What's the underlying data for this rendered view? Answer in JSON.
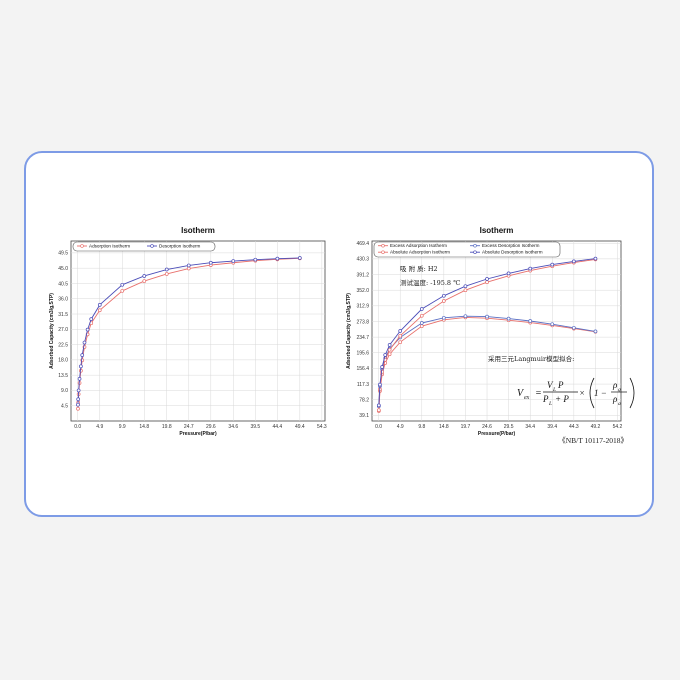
{
  "colors": {
    "card_border": "#7d9be6",
    "adsorption": "#e8706c",
    "desorption": "#4b4db8",
    "excess_desorption": "#5a6fc4"
  },
  "footer_note": "《NB/T 10117-2018》",
  "chart_data": [
    {
      "type": "line",
      "title": "Isotherm",
      "xlabel": "Pressure(P/bar)",
      "ylabel": "Adsorbed Capacity (cm3/g,STP)",
      "xticks": [
        "0.0",
        "4.9",
        "9.9",
        "14.8",
        "19.8",
        "24.7",
        "29.6",
        "34.6",
        "39.5",
        "44.4",
        "49.4",
        "54.3"
      ],
      "yticks": [
        "4.5",
        "9.0",
        "13.5",
        "18.0",
        "22.5",
        "27.0",
        "31.5",
        "36.0",
        "40.5",
        "45.0",
        "49.5"
      ],
      "xlim": [
        -1.5,
        55
      ],
      "ylim": [
        0,
        53
      ],
      "grid": true,
      "legend_position": "top-left",
      "series": [
        {
          "name": "Adsorption Isotherm",
          "color": "#e8706c",
          "x": [
            0.05,
            0.1,
            0.2,
            0.4,
            0.7,
            1.0,
            1.5,
            2.2,
            3.0,
            4.9,
            9.9,
            14.8,
            19.8,
            24.7,
            29.6,
            34.6,
            39.5,
            44.4,
            49.4
          ],
          "y": [
            3.6,
            5.4,
            7.9,
            11.2,
            14.8,
            17.9,
            21.8,
            25.5,
            28.8,
            32.6,
            38.3,
            41.2,
            43.3,
            44.9,
            45.9,
            46.6,
            47.2,
            47.6,
            47.9
          ]
        },
        {
          "name": "Desorption Isotherm",
          "color": "#4b4db8",
          "x": [
            49.4,
            44.4,
            39.5,
            34.6,
            29.6,
            24.7,
            19.8,
            14.8,
            9.9,
            4.9,
            3.0,
            2.2,
            1.5,
            1.0,
            0.7,
            0.4,
            0.2,
            0.1,
            0.05
          ],
          "y": [
            48.0,
            47.8,
            47.5,
            47.1,
            46.6,
            45.8,
            44.6,
            42.7,
            40.1,
            34.2,
            30.0,
            26.9,
            23.1,
            19.4,
            16.1,
            12.4,
            9.0,
            6.4,
            4.8
          ]
        }
      ]
    },
    {
      "type": "line",
      "title": "Isotherm",
      "xlabel": "Pressure(P/bar)",
      "ylabel": "Adsorbed Capacity (cm3/g,STP)",
      "xticks": [
        "0.0",
        "4.9",
        "9.8",
        "14.8",
        "19.7",
        "24.6",
        "29.5",
        "34.4",
        "39.4",
        "44.3",
        "49.2",
        "54.2"
      ],
      "yticks": [
        "39.1",
        "78.2",
        "117.3",
        "156.4",
        "195.6",
        "234.7",
        "273.8",
        "312.9",
        "352.0",
        "391.2",
        "430.3",
        "469.4"
      ],
      "xlim": [
        -1.5,
        55
      ],
      "ylim": [
        25,
        475
      ],
      "grid": true,
      "legend_position": "top-left",
      "annotations": [
        "吸 附 质: H2",
        "测试温度: -195.8 ℃",
        "采用三元Langmuir模型拟合:"
      ],
      "formula": {
        "lhs": "V",
        "lhs_sub": "ex",
        "equals": "=",
        "num": "V",
        "num_sub": "L",
        "num_tail": "P",
        "den": "P",
        "den_sub": "L",
        "den_tail": "+ P",
        "times": "×",
        "one_minus": "1 −",
        "rho_num": "ρ",
        "rho_num_sub": "g",
        "rho_den": "ρ",
        "rho_den_sub": "a"
      },
      "series": [
        {
          "name": "Excess Adsorption Isotherm",
          "color": "#e8706c",
          "x": [
            0.05,
            0.3,
            0.8,
            1.5,
            2.5,
            4.9,
            9.8,
            14.8,
            19.7,
            24.6,
            29.5,
            34.4,
            39.4,
            44.3,
            49.2
          ],
          "y": [
            50,
            100,
            142,
            170,
            192,
            222,
            262,
            278,
            284,
            282,
            277,
            271,
            264,
            256,
            248
          ]
        },
        {
          "name": "Excess Desorption Isotherm",
          "color": "#5a6fc4",
          "x": [
            49.2,
            44.3,
            39.4,
            34.4,
            29.5,
            24.6,
            19.7,
            14.8,
            9.8,
            4.9,
            2.5,
            1.5,
            0.8,
            0.3,
            0.05
          ],
          "y": [
            249,
            258,
            267,
            275,
            281,
            286,
            287,
            283,
            270,
            234,
            205,
            182,
            154,
            112,
            62
          ]
        },
        {
          "name": "Absolute Adsorption Isotherm",
          "color": "#e8706c",
          "x": [
            0.05,
            0.3,
            0.8,
            1.5,
            2.5,
            4.9,
            9.8,
            14.8,
            19.7,
            24.6,
            29.5,
            34.4,
            39.4,
            44.3,
            49.2
          ],
          "y": [
            52,
            104,
            148,
            178,
            203,
            238,
            288,
            325,
            352,
            372,
            388,
            401,
            412,
            421,
            429
          ]
        },
        {
          "name": "Absolute Desorption Isotherm",
          "color": "#4b4db8",
          "x": [
            49.2,
            44.3,
            39.4,
            34.4,
            29.5,
            24.6,
            19.7,
            14.8,
            9.8,
            4.9,
            2.5,
            1.5,
            0.8,
            0.3,
            0.05
          ],
          "y": [
            431,
            424,
            416,
            406,
            394,
            380,
            362,
            338,
            305,
            250,
            215,
            190,
            160,
            116,
            64
          ]
        }
      ]
    }
  ]
}
